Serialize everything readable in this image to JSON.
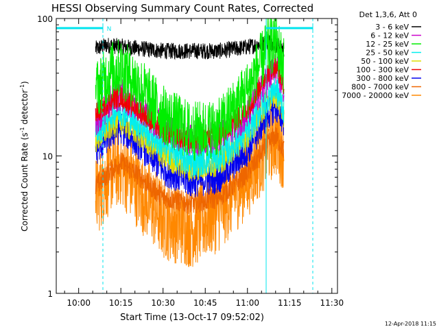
{
  "chart_data": {
    "type": "line",
    "title": "HESSI Observing Summary Count Rates, Corrected",
    "xlabel": "Start Time (13-Oct-17 09:52:02)",
    "ylabel_main": "Corrected Count Rate (s",
    "ylabel_sup1": "-1",
    "ylabel_mid": " detector",
    "ylabel_sup2": "-1",
    "ylabel_end": ")",
    "y_scale": "log",
    "ylim": [
      1,
      100
    ],
    "xlim": [
      "09:52:02",
      "11:32:00"
    ],
    "x_ticks": [
      "10:00",
      "10:15",
      "10:30",
      "10:45",
      "11:00",
      "11:15",
      "11:30"
    ],
    "y_ticks": [
      "1",
      "10",
      "100"
    ],
    "legend_title": "Det 1,3,6, Att 0",
    "legend_position": "right",
    "flag_label": "N",
    "timestamp": "12-Apr-2018 11:15",
    "series": [
      {
        "name": "3 - 6 keV",
        "color": "#000000",
        "jitter": 0.06,
        "points": [
          [
            "10:06",
            60
          ],
          [
            "10:10",
            64
          ],
          [
            "10:30",
            58
          ],
          [
            "10:50",
            58
          ],
          [
            "11:00",
            62
          ],
          [
            "11:08",
            68
          ],
          [
            "11:13",
            60
          ]
        ]
      },
      {
        "name": "6 - 12 keV",
        "color": "#cc00cc",
        "jitter": 0.12,
        "points": [
          [
            "10:06",
            18
          ],
          [
            "10:12",
            26
          ],
          [
            "10:15",
            28
          ],
          [
            "10:22",
            22
          ],
          [
            "10:30",
            16
          ],
          [
            "10:40",
            13
          ],
          [
            "10:50",
            14
          ],
          [
            "11:00",
            20
          ],
          [
            "11:07",
            35
          ],
          [
            "11:10",
            44
          ],
          [
            "11:13",
            30
          ]
        ]
      },
      {
        "name": "12 - 25 keV",
        "color": "#00ee00",
        "jitter": 0.22,
        "points": [
          [
            "10:06",
            30
          ],
          [
            "10:12",
            42
          ],
          [
            "10:15",
            44
          ],
          [
            "10:22",
            32
          ],
          [
            "10:30",
            20
          ],
          [
            "10:40",
            15
          ],
          [
            "10:50",
            16
          ],
          [
            "11:00",
            30
          ],
          [
            "11:07",
            60
          ],
          [
            "11:10",
            68
          ],
          [
            "11:13",
            45
          ]
        ]
      },
      {
        "name": "25 - 50 keV",
        "color": "#00eeee",
        "jitter": 0.12,
        "points": [
          [
            "10:06",
            15
          ],
          [
            "10:12",
            21
          ],
          [
            "10:15",
            22
          ],
          [
            "10:22",
            17
          ],
          [
            "10:30",
            12
          ],
          [
            "10:40",
            9
          ],
          [
            "10:50",
            10
          ],
          [
            "11:00",
            15
          ],
          [
            "11:07",
            27
          ],
          [
            "11:10",
            32
          ],
          [
            "11:13",
            22
          ]
        ]
      },
      {
        "name": "50 - 100 keV",
        "color": "#dddd00",
        "jitter": 0.1,
        "points": [
          [
            "10:06",
            13
          ],
          [
            "10:12",
            17
          ],
          [
            "10:15",
            18
          ],
          [
            "10:22",
            14
          ],
          [
            "10:30",
            10
          ],
          [
            "10:40",
            8
          ],
          [
            "10:50",
            9
          ],
          [
            "11:00",
            14
          ],
          [
            "11:07",
            25
          ],
          [
            "11:10",
            28
          ],
          [
            "11:13",
            20
          ]
        ]
      },
      {
        "name": "100 - 300 keV",
        "color": "#ee0000",
        "jitter": 0.08,
        "points": [
          [
            "10:06",
            20
          ],
          [
            "10:12",
            26
          ],
          [
            "10:15",
            27
          ],
          [
            "10:22",
            21
          ],
          [
            "10:30",
            15
          ],
          [
            "10:40",
            13
          ],
          [
            "10:50",
            14
          ],
          [
            "11:00",
            22
          ],
          [
            "11:07",
            40
          ],
          [
            "11:10",
            45
          ],
          [
            "11:13",
            33
          ]
        ]
      },
      {
        "name": "300 - 800 keV",
        "color": "#0000ee",
        "jitter": 0.12,
        "points": [
          [
            "10:06",
            11
          ],
          [
            "10:12",
            15
          ],
          [
            "10:15",
            16
          ],
          [
            "10:22",
            12
          ],
          [
            "10:30",
            8
          ],
          [
            "10:40",
            6.5
          ],
          [
            "10:50",
            7
          ],
          [
            "11:00",
            11
          ],
          [
            "11:07",
            20
          ],
          [
            "11:10",
            23
          ],
          [
            "11:13",
            18
          ]
        ]
      },
      {
        "name": "800 - 7000 keV",
        "color": "#ee6600",
        "jitter": 0.08,
        "points": [
          [
            "10:06",
            6
          ],
          [
            "10:12",
            8
          ],
          [
            "10:15",
            9
          ],
          [
            "10:22",
            7
          ],
          [
            "10:30",
            5
          ],
          [
            "10:40",
            4.5
          ],
          [
            "10:50",
            5
          ],
          [
            "11:00",
            7.5
          ],
          [
            "11:07",
            12
          ],
          [
            "11:10",
            14
          ],
          [
            "11:13",
            11
          ]
        ]
      },
      {
        "name": "7000 - 20000 keV",
        "color": "#ff8800",
        "jitter": 0.3,
        "points": [
          [
            "10:06",
            5
          ],
          [
            "10:12",
            8
          ],
          [
            "10:15",
            8.5
          ],
          [
            "10:22",
            5.5
          ],
          [
            "10:30",
            3.5
          ],
          [
            "10:40",
            3
          ],
          [
            "10:50",
            4
          ],
          [
            "11:00",
            7
          ],
          [
            "11:07",
            12
          ],
          [
            "11:10",
            14
          ],
          [
            "11:13",
            11
          ]
        ]
      }
    ]
  }
}
